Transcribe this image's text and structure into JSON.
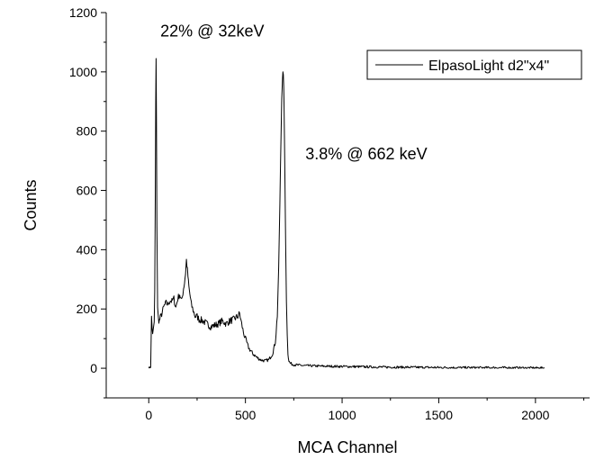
{
  "chart_data": {
    "type": "line",
    "xlabel": "MCA Channel",
    "ylabel": "Counts",
    "xlim": [
      -220,
      2280
    ],
    "ylim": [
      -100,
      1200
    ],
    "xticks": [
      0,
      500,
      1000,
      1500,
      2000
    ],
    "xtick_labels": [
      "0",
      "500",
      "1000",
      "1500",
      "2000"
    ],
    "yticks": [
      0,
      200,
      400,
      600,
      800,
      1000,
      1200
    ],
    "ytick_labels": [
      "0",
      "200",
      "400",
      "600",
      "800",
      "1000",
      "1200"
    ],
    "grid": false,
    "legend_position": "top-right",
    "series": [
      {
        "name": "ElpasoLight d2\"x4\"",
        "color": "#000000",
        "x": [
          0,
          10,
          14,
          18,
          20,
          24,
          28,
          31,
          34,
          36,
          38,
          40,
          42,
          46,
          50,
          55,
          60,
          70,
          80,
          90,
          100,
          110,
          120,
          130,
          140,
          150,
          160,
          170,
          180,
          185,
          190,
          195,
          200,
          205,
          210,
          215,
          220,
          230,
          240,
          250,
          260,
          280,
          300,
          320,
          340,
          360,
          380,
          400,
          420,
          440,
          460,
          470,
          480,
          490,
          500,
          510,
          520,
          540,
          560,
          580,
          600,
          620,
          640,
          655,
          665,
          672,
          678,
          684,
          688,
          692,
          694,
          696,
          698,
          700,
          702,
          704,
          708,
          712,
          716,
          720,
          725,
          730,
          740,
          760,
          800,
          900,
          1000,
          1100,
          1200,
          1400,
          1600,
          1800,
          2000,
          2047
        ],
        "y": [
          0,
          5,
          170,
          130,
          120,
          130,
          150,
          260,
          620,
          900,
          1045,
          850,
          480,
          200,
          165,
          160,
          170,
          190,
          210,
          220,
          215,
          230,
          225,
          235,
          205,
          235,
          250,
          225,
          270,
          290,
          320,
          365,
          330,
          290,
          260,
          240,
          215,
          195,
          175,
          175,
          165,
          160,
          150,
          140,
          145,
          150,
          160,
          150,
          160,
          165,
          175,
          185,
          150,
          120,
          100,
          80,
          65,
          48,
          36,
          28,
          25,
          28,
          48,
          90,
          180,
          330,
          550,
          780,
          910,
          980,
          1000,
          990,
          950,
          880,
          780,
          650,
          430,
          230,
          110,
          50,
          25,
          18,
          14,
          11,
          9,
          7,
          6,
          5,
          4,
          3,
          2,
          2,
          1,
          1
        ]
      }
    ],
    "annotations": [
      {
        "text": "22% @ 32keV",
        "x": 60,
        "y": 1120
      },
      {
        "text": "3.8% @ 662 keV",
        "x": 810,
        "y": 705
      }
    ]
  }
}
